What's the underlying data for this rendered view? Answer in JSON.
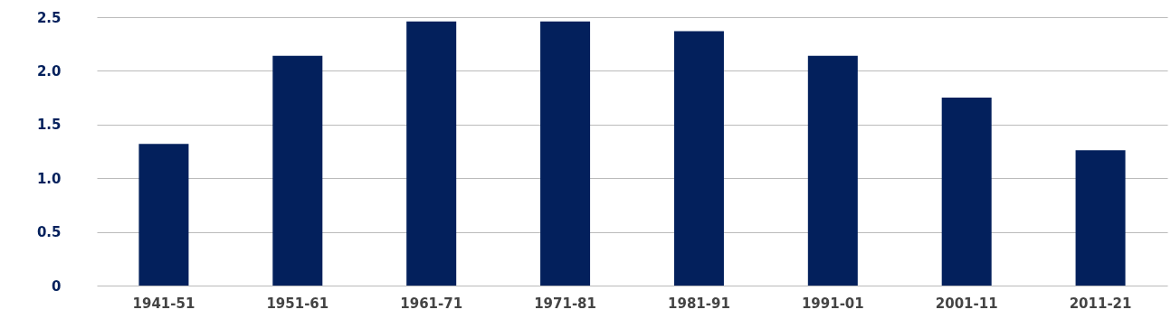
{
  "chart_data": {
    "type": "bar",
    "categories": [
      "1941-51",
      "1951-61",
      "1961-71",
      "1971-81",
      "1981-91",
      "1991-01",
      "2001-11",
      "2011-21"
    ],
    "values": [
      1.32,
      2.14,
      2.46,
      2.46,
      2.37,
      2.14,
      1.75,
      1.26
    ],
    "color": "#03205c",
    "ylim": [
      0,
      2.5
    ],
    "yticks": [
      0,
      0.5,
      {
        "value": 1,
        "label": "1.0"
      },
      1.5,
      {
        "value": 2,
        "label": "2.0"
      },
      2.5
    ],
    "grid": "y"
  }
}
